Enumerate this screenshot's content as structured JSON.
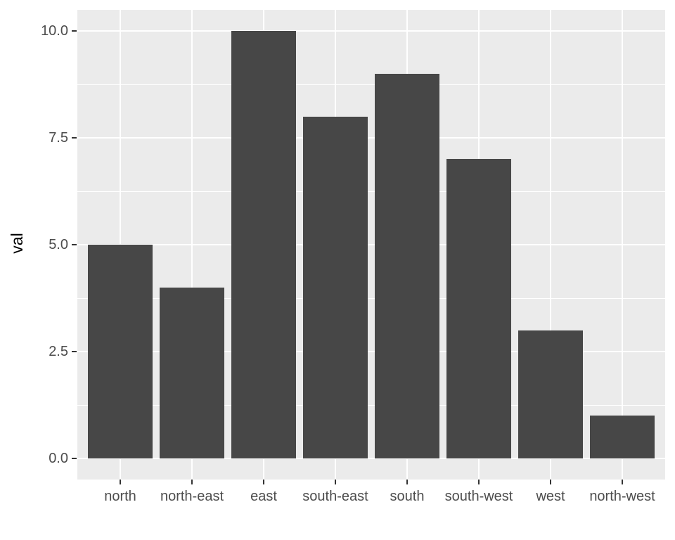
{
  "chart_data": {
    "type": "bar",
    "categories": [
      "north",
      "north-east",
      "east",
      "south-east",
      "south",
      "south-west",
      "west",
      "north-west"
    ],
    "values": [
      5,
      4,
      10,
      8,
      9,
      7,
      3,
      1
    ],
    "title": "",
    "xlabel": "",
    "ylabel": "val",
    "ylim": [
      -0.5,
      10.5
    ],
    "ytick_values": [
      0,
      2.5,
      5,
      7.5,
      10
    ],
    "ytick_labels": [
      "0.0",
      "2.5",
      "5.0",
      "7.5",
      "10.0"
    ],
    "yminor_values": [
      1.25,
      3.75,
      6.25,
      8.75
    ],
    "grid": "on",
    "legend_position": "none",
    "style": "ggplot2",
    "colors": {
      "bar_fill": "#474747",
      "panel_background": "#EBEBEB",
      "gridline": "#FFFFFF",
      "tick_mark": "#333333",
      "tick_label": "#4D4D4D",
      "axis_title": "#000000",
      "figure_background": "#FFFFFF"
    }
  }
}
